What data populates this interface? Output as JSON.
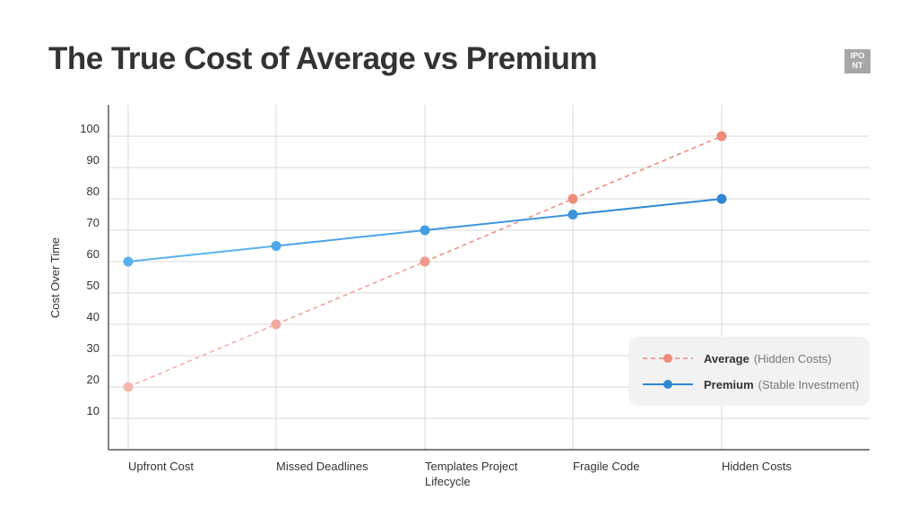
{
  "title": "The True Cost of Average vs Premium",
  "logo": {
    "line1": "IPO",
    "line2": "NT"
  },
  "colors": {
    "average": "#ef8a7a",
    "average_light": "#f4b8ae",
    "premium": "#2f87d2",
    "premium_light": "#5ab1f0",
    "grid": "#d9d9d9",
    "axis": "#333333"
  },
  "chart_data": {
    "type": "line",
    "title": "The True Cost of Average vs Premium",
    "xlabel": "",
    "ylabel": "Cost Over Time",
    "ylim": [
      0,
      110
    ],
    "yticks": [
      10,
      20,
      30,
      40,
      50,
      60,
      70,
      80,
      90,
      100
    ],
    "categories": [
      "Upfront Cost",
      "Missed Deadlines",
      "Templates Project Lifecycle",
      "Fragile Code",
      "Hidden Costs"
    ],
    "category_lines": [
      [
        "Upfront Cost"
      ],
      [
        "Missed Deadlines"
      ],
      [
        "Templates Project",
        "Lifecycle"
      ],
      [
        "Fragile Code"
      ],
      [
        "Hidden Costs"
      ]
    ],
    "series": [
      {
        "name": "Average",
        "description": "(Hidden Costs)",
        "style": "dashed",
        "values": [
          20,
          40,
          60,
          80,
          100
        ]
      },
      {
        "name": "Premium",
        "description": "(Stable Investment)",
        "style": "solid",
        "values": [
          60,
          65,
          70,
          75,
          80
        ]
      }
    ],
    "grid": true,
    "legend_position": "bottom-right"
  }
}
